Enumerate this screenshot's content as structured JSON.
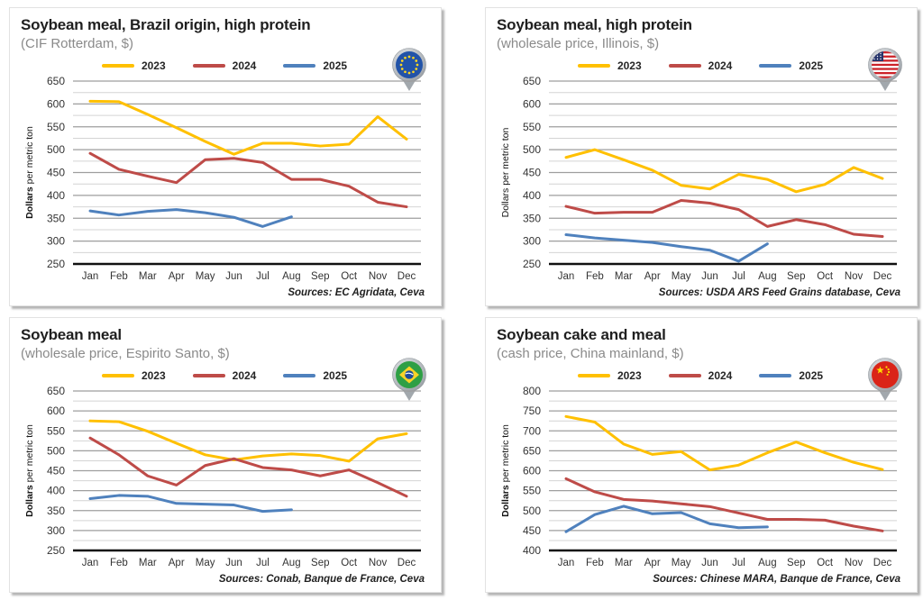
{
  "page": {
    "background": "#ffffff"
  },
  "colors": {
    "accent_2023": "#FFC000",
    "accent_2024": "#BE4B48",
    "accent_2025": "#4F81BD",
    "grid_major": "#9e9e9e",
    "grid_minor": "#d4d4d4",
    "axis_line": "#111111"
  },
  "chart_data": [
    {
      "type": "line",
      "title": "Soybean meal, Brazil origin, high protein",
      "subtitle": "(CIF Rotterdam, $)",
      "ylabel": "Dollars per metric ton",
      "ylabel_bold_prefix": true,
      "sources": "Sources: EC Agridata, Ceva",
      "flag_icon": "eu-flag-pin",
      "legend_position": "top",
      "grid": true,
      "ylim": [
        250,
        650
      ],
      "ytick_step": 50,
      "grid_minor_step": 25,
      "x": [
        "Jan",
        "Feb",
        "Mar",
        "Apr",
        "May",
        "Jun",
        "Jul",
        "Aug",
        "Sep",
        "Oct",
        "Nov",
        "Dec"
      ],
      "series": [
        {
          "name": "2023",
          "color": "#FFC000",
          "values": [
            606,
            605,
            577,
            548,
            518,
            490,
            514,
            514,
            508,
            512,
            572,
            523
          ]
        },
        {
          "name": "2024",
          "color": "#BE4B48",
          "values": [
            492,
            457,
            442,
            428,
            478,
            481,
            472,
            435,
            435,
            420,
            385,
            375
          ]
        },
        {
          "name": "2025",
          "color": "#4F81BD",
          "values": [
            366,
            357,
            365,
            369,
            362,
            352,
            332,
            353
          ]
        }
      ]
    },
    {
      "type": "line",
      "title": "Soybean meal, high protein",
      "subtitle": "(wholesale price, Illinois, $)",
      "ylabel": "Dollars per metric ton",
      "ylabel_bold_prefix": false,
      "sources": "Sources: USDA ARS Feed Grains database, Ceva",
      "flag_icon": "us-flag-pin",
      "legend_position": "top",
      "grid": true,
      "ylim": [
        250,
        650
      ],
      "ytick_step": 50,
      "grid_minor_step": 25,
      "x": [
        "Jan",
        "Feb",
        "Mar",
        "Apr",
        "May",
        "Jun",
        "Jul",
        "Aug",
        "Sep",
        "Oct",
        "Nov",
        "Dec"
      ],
      "series": [
        {
          "name": "2023",
          "color": "#FFC000",
          "values": [
            483,
            500,
            478,
            455,
            422,
            414,
            446,
            435,
            408,
            424,
            461,
            437
          ]
        },
        {
          "name": "2024",
          "color": "#BE4B48",
          "values": [
            376,
            361,
            363,
            363,
            389,
            383,
            369,
            332,
            347,
            336,
            315,
            310
          ]
        },
        {
          "name": "2025",
          "color": "#4F81BD",
          "values": [
            314,
            307,
            302,
            297,
            288,
            280,
            256,
            294
          ]
        }
      ]
    },
    {
      "type": "line",
      "title": "Soybean meal",
      "subtitle": "(wholesale price, Espirito Santo, $)",
      "ylabel": "Dollars per metric ton",
      "ylabel_bold_prefix": true,
      "sources": "Sources: Conab, Banque de France, Ceva",
      "flag_icon": "brazil-flag-pin",
      "legend_position": "top",
      "grid": true,
      "ylim": [
        250,
        650
      ],
      "ytick_step": 50,
      "grid_minor_step": 25,
      "x": [
        "Jan",
        "Feb",
        "Mar",
        "Apr",
        "May",
        "Jun",
        "Jul",
        "Aug",
        "Sep",
        "Oct",
        "Nov",
        "Dec"
      ],
      "series": [
        {
          "name": "2023",
          "color": "#FFC000",
          "values": [
            575,
            573,
            549,
            519,
            490,
            477,
            487,
            492,
            488,
            474,
            530,
            543
          ]
        },
        {
          "name": "2024",
          "color": "#BE4B48",
          "values": [
            532,
            490,
            437,
            414,
            463,
            480,
            458,
            452,
            437,
            452,
            420,
            386
          ]
        },
        {
          "name": "2025",
          "color": "#4F81BD",
          "values": [
            380,
            388,
            386,
            368,
            366,
            364,
            348,
            352
          ]
        }
      ]
    },
    {
      "type": "line",
      "title": "Soybean cake and meal",
      "subtitle": "(cash price, China mainland, $)",
      "ylabel": "Dollars per metric ton",
      "ylabel_bold_prefix": true,
      "sources": "Sources: Chinese MARA, Banque de France, Ceva",
      "flag_icon": "china-flag-pin",
      "legend_position": "top",
      "grid": true,
      "ylim": [
        400,
        800
      ],
      "ytick_step": 50,
      "grid_minor_step": 25,
      "x": [
        "Jan",
        "Feb",
        "Mar",
        "Apr",
        "May",
        "Jun",
        "Jul",
        "Aug",
        "Sep",
        "Oct",
        "Nov",
        "Dec"
      ],
      "series": [
        {
          "name": "2023",
          "color": "#FFC000",
          "values": [
            736,
            722,
            667,
            641,
            648,
            602,
            614,
            645,
            672,
            645,
            621,
            603
          ]
        },
        {
          "name": "2024",
          "color": "#BE4B48",
          "values": [
            580,
            547,
            528,
            524,
            517,
            510,
            494,
            478,
            478,
            476,
            461,
            449
          ]
        },
        {
          "name": "2025",
          "color": "#4F81BD",
          "values": [
            447,
            490,
            511,
            492,
            495,
            467,
            457,
            459
          ]
        }
      ]
    }
  ]
}
